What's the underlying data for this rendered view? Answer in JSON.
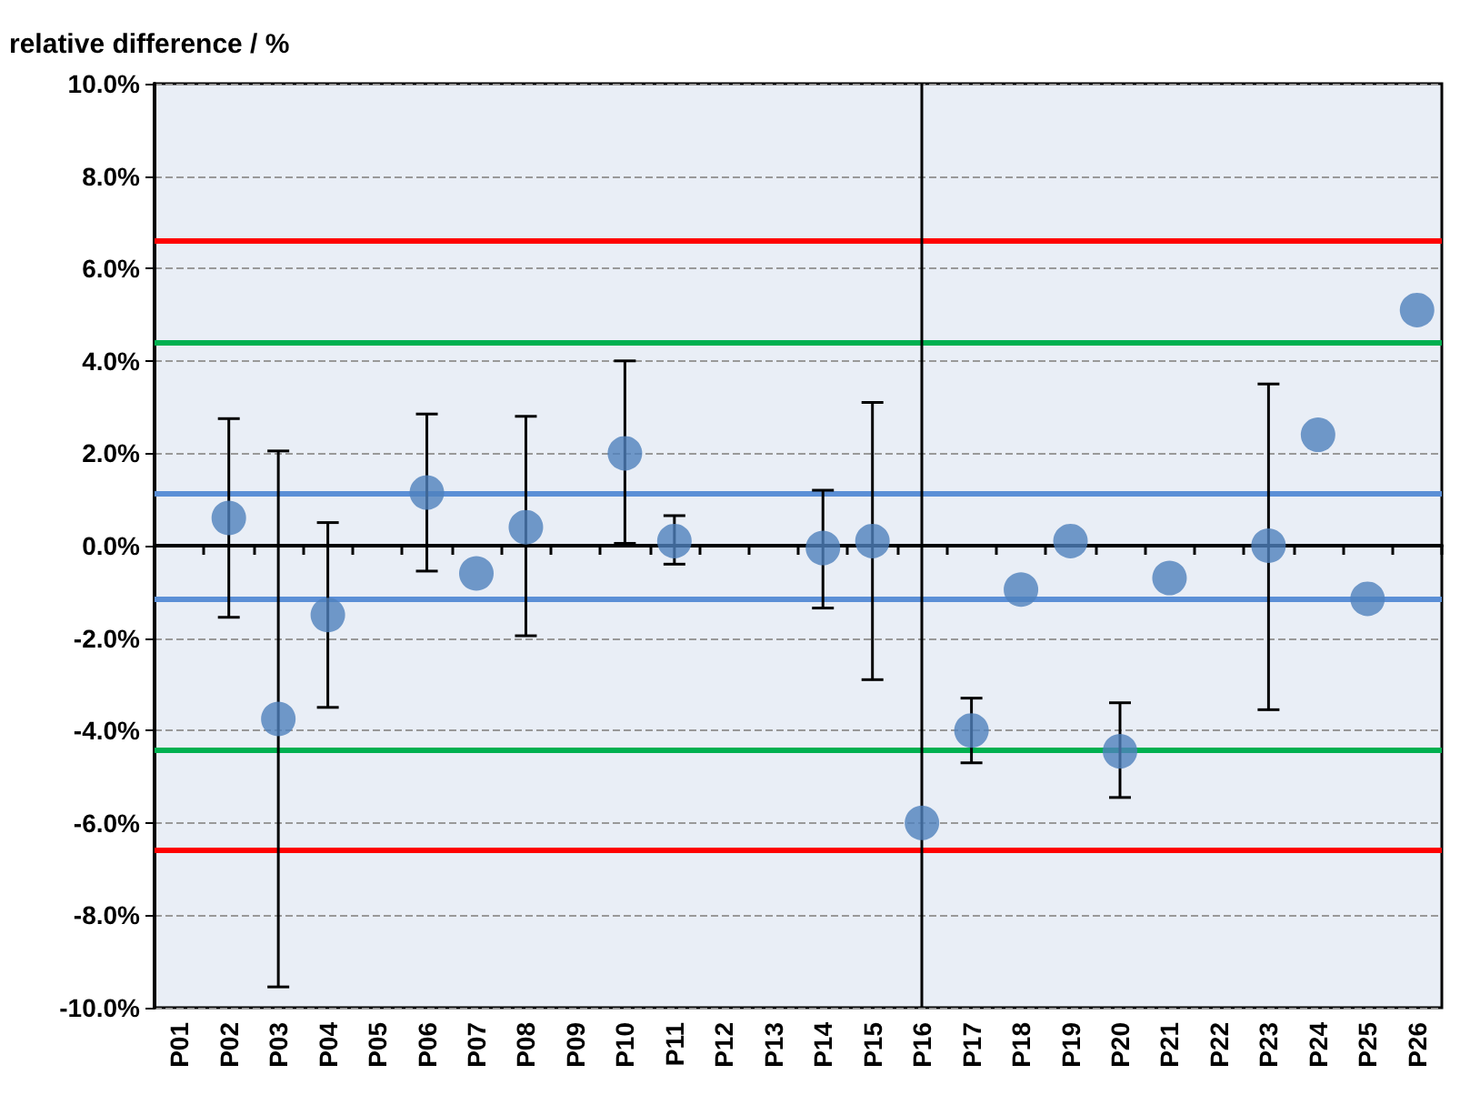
{
  "chart_data": {
    "type": "scatter",
    "ylabel": "relative difference / %",
    "categories": [
      "P01",
      "P02",
      "P03",
      "P04",
      "P05",
      "P06",
      "P07",
      "P08",
      "P09",
      "P10",
      "P11",
      "P12",
      "P13",
      "P14",
      "P15",
      "P16",
      "P17",
      "P18",
      "P19",
      "P20",
      "P21",
      "P22",
      "P23",
      "P24",
      "P25",
      "P26"
    ],
    "values": [
      null,
      0.6,
      -3.75,
      -1.5,
      null,
      1.15,
      -0.6,
      0.4,
      null,
      2.0,
      0.1,
      null,
      null,
      -0.05,
      0.1,
      -6.0,
      -4.0,
      -0.95,
      0.1,
      -4.45,
      -0.7,
      null,
      0.0,
      2.4,
      -1.15,
      5.1
    ],
    "errors": [
      null,
      [
        -1.55,
        2.75
      ],
      [
        -9.55,
        2.05
      ],
      [
        -3.5,
        0.5
      ],
      null,
      [
        -0.55,
        2.85
      ],
      null,
      [
        -1.95,
        2.8
      ],
      null,
      [
        0.05,
        4.0
      ],
      [
        -0.4,
        0.65
      ],
      null,
      null,
      [
        -1.35,
        1.2
      ],
      [
        -2.9,
        3.1
      ],
      null,
      [
        -4.7,
        -3.3
      ],
      null,
      null,
      [
        -5.45,
        -3.4
      ],
      null,
      null,
      [
        -3.55,
        3.5
      ],
      null,
      null,
      null
    ],
    "color": "#4f81bd",
    "marker": "circle",
    "ylim": [
      -10,
      10
    ],
    "yticks": [
      {
        "value": -10,
        "label": "-10.0%"
      },
      {
        "value": -8,
        "label": "-8.0%"
      },
      {
        "value": -6,
        "label": "-6.0%"
      },
      {
        "value": -4,
        "label": "-4.0%"
      },
      {
        "value": -2,
        "label": "-2.0%"
      },
      {
        "value": 0,
        "label": "0.0%"
      },
      {
        "value": 2,
        "label": "2.0%"
      },
      {
        "value": 4,
        "label": "4.0%"
      },
      {
        "value": 6,
        "label": "6.0%"
      },
      {
        "value": 8,
        "label": "8.0%"
      },
      {
        "value": 10,
        "label": "10.0%"
      }
    ],
    "grid": "y",
    "ref_lines": [
      {
        "axis": "y",
        "value": 6.6,
        "color": "#ff0000"
      },
      {
        "axis": "y",
        "value": -6.6,
        "color": "#ff0000"
      },
      {
        "axis": "y",
        "value": 4.4,
        "color": "#00b050"
      },
      {
        "axis": "y",
        "value": -4.4,
        "color": "#00b050"
      },
      {
        "axis": "y",
        "value": 1.15,
        "color": "#5b8fd6"
      },
      {
        "axis": "y",
        "value": -1.15,
        "color": "#5b8fd6"
      },
      {
        "axis": "x",
        "value": "P16",
        "color": "#000000"
      }
    ]
  }
}
